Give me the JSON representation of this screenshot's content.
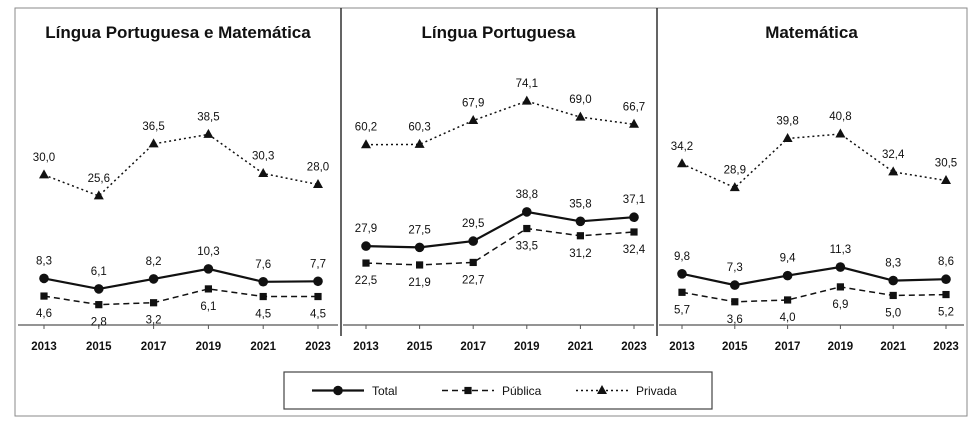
{
  "chart_data": [
    {
      "type": "line",
      "title": "Língua Portuguesa e Matemática",
      "categories": [
        "2013",
        "2015",
        "2017",
        "2019",
        "2021",
        "2023"
      ],
      "series": [
        {
          "name": "Total",
          "values": [
            8.3,
            6.1,
            8.2,
            10.3,
            7.6,
            7.7
          ],
          "labels": [
            "8,3",
            "6,1",
            "8,2",
            "10,3",
            "7,6",
            "7,7"
          ]
        },
        {
          "name": "Pública",
          "values": [
            4.6,
            2.8,
            3.2,
            6.1,
            4.5,
            4.5
          ],
          "labels": [
            "4,6",
            "2,8",
            "3,2",
            "6,1",
            "4,5",
            "4,5"
          ]
        },
        {
          "name": "Privada",
          "values": [
            30.0,
            25.6,
            36.5,
            38.5,
            30.3,
            28.0
          ],
          "labels": [
            "30,0",
            "25,6",
            "36,5",
            "38,5",
            "30,3",
            "28,0"
          ]
        }
      ],
      "ylim": [
        0,
        52
      ]
    },
    {
      "type": "line",
      "title": "Língua Portuguesa",
      "categories": [
        "2013",
        "2015",
        "2017",
        "2019",
        "2021",
        "2023"
      ],
      "series": [
        {
          "name": "Total",
          "values": [
            27.9,
            27.5,
            29.5,
            38.8,
            35.8,
            37.1
          ],
          "labels": [
            "27,9",
            "27,5",
            "29,5",
            "38,8",
            "35,8",
            "37,1"
          ]
        },
        {
          "name": "Pública",
          "values": [
            22.5,
            21.9,
            22.7,
            33.5,
            31.2,
            32.4
          ],
          "labels": [
            "22,5",
            "21,9",
            "22,7",
            "33,5",
            "31,2",
            "32,4"
          ]
        },
        {
          "name": "Privada",
          "values": [
            60.2,
            60.3,
            67.9,
            74.1,
            69.0,
            66.7
          ],
          "labels": [
            "60,2",
            "60,3",
            "67,9",
            "74,1",
            "69,0",
            "66,7"
          ]
        }
      ],
      "ylim": [
        5,
        84
      ]
    },
    {
      "type": "line",
      "title": "Matemática",
      "categories": [
        "2013",
        "2015",
        "2017",
        "2019",
        "2021",
        "2023"
      ],
      "series": [
        {
          "name": "Total",
          "values": [
            9.8,
            7.3,
            9.4,
            11.3,
            8.3,
            8.6
          ],
          "labels": [
            "9,8",
            "7,3",
            "9,4",
            "11,3",
            "8,3",
            "8,6"
          ]
        },
        {
          "name": "Pública",
          "values": [
            5.7,
            3.6,
            4.0,
            6.9,
            5.0,
            5.2
          ],
          "labels": [
            "5,7",
            "3,6",
            "4,0",
            "6,9",
            "5,0",
            "5,2"
          ]
        },
        {
          "name": "Privada",
          "values": [
            34.2,
            28.9,
            39.8,
            40.8,
            32.4,
            30.5
          ],
          "labels": [
            "34,2",
            "28,9",
            "39,8",
            "40,8",
            "32,4",
            "30,5"
          ]
        }
      ],
      "ylim": [
        0,
        55
      ]
    }
  ],
  "legend": {
    "placement": "bottom-center",
    "items": [
      {
        "name": "Total",
        "style": "solid",
        "marker": "circle"
      },
      {
        "name": "Pública",
        "style": "dashed",
        "marker": "square"
      },
      {
        "name": "Privada",
        "style": "dotted",
        "marker": "triangle"
      }
    ]
  },
  "colors": {
    "line": "#111111",
    "frame": "#8a8a8a",
    "divider": "#222222",
    "background": "#ffffff"
  }
}
